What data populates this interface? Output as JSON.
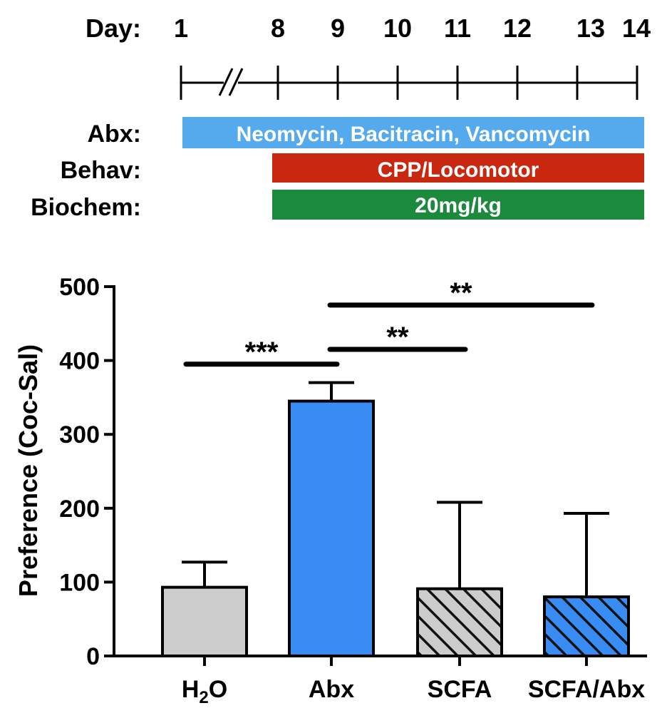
{
  "timeline": {
    "day_label": "Day:",
    "days": [
      "1",
      "8",
      "9",
      "10",
      "11",
      "12",
      "13",
      "14"
    ],
    "rows": [
      {
        "label": "Abx:",
        "text": "Neomycin, Bacitracin, Vancomycin",
        "color": "#55aaee",
        "start_day": "1",
        "end_day": "14"
      },
      {
        "label": "Behav:",
        "text": "CPP/Locomotor",
        "color": "#c8280f",
        "start_day": "8",
        "end_day": "14"
      },
      {
        "label": "Biochem:",
        "text": "20mg/kg",
        "color": "#1c8a3c",
        "start_day": "8",
        "end_day": "14"
      }
    ]
  },
  "chart_data": {
    "type": "bar",
    "categories": [
      "H2O",
      "Abx",
      "SCFA",
      "SCFA/Abx"
    ],
    "category_labels": [
      {
        "main": "H",
        "sub": "2",
        "tail": "O"
      },
      {
        "main": "Abx",
        "sub": "",
        "tail": ""
      },
      {
        "main": "SCFA",
        "sub": "",
        "tail": ""
      },
      {
        "main": "SCFA/Abx",
        "sub": "",
        "tail": ""
      }
    ],
    "values": [
      93,
      345,
      91,
      80
    ],
    "error_plus": [
      127,
      370,
      208,
      193
    ],
    "fills": [
      {
        "color": "#cccccc",
        "hatched": false
      },
      {
        "color": "#3a8cf5",
        "hatched": false
      },
      {
        "color": "#cccccc",
        "hatched": true
      },
      {
        "color": "#3a8cf5",
        "hatched": true
      }
    ],
    "ylabel": "Preference (Coc-Sal)",
    "ylim": [
      0,
      500
    ],
    "yticks": [
      "0",
      "100",
      "200",
      "300",
      "400",
      "500"
    ],
    "significance": [
      {
        "from": 0,
        "to": 1,
        "y": 395,
        "label": "***"
      },
      {
        "from": 1,
        "to": 2,
        "y": 415,
        "label": "**"
      },
      {
        "from": 1,
        "to": 3,
        "y": 475,
        "label": "**"
      }
    ]
  }
}
